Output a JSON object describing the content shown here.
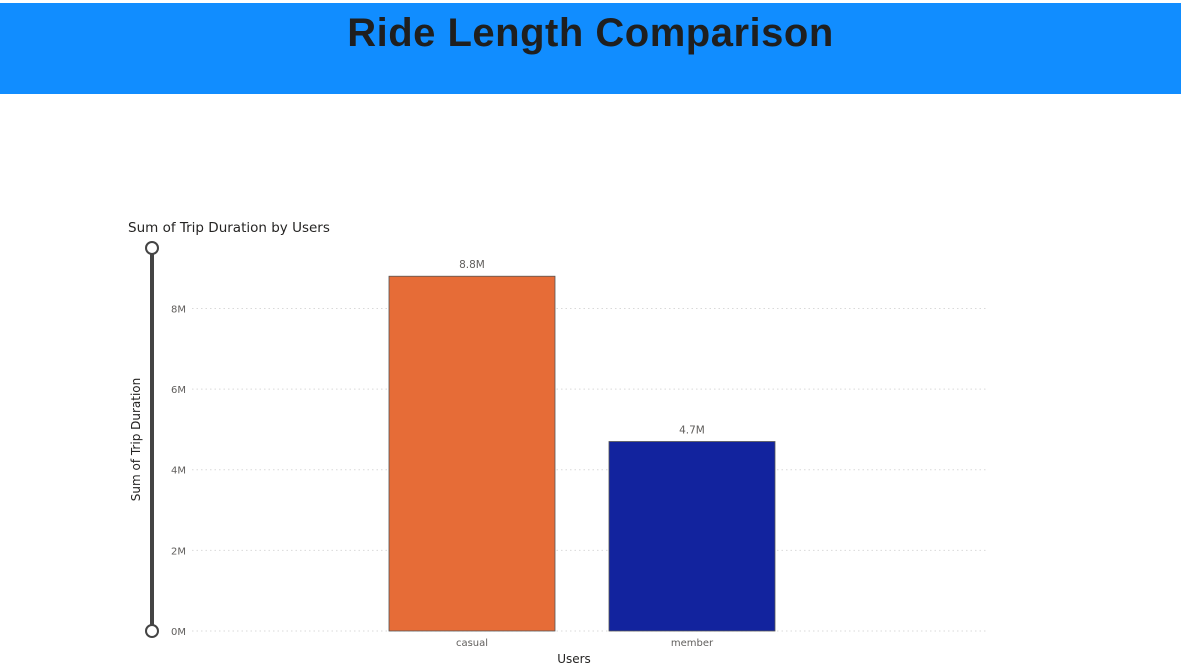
{
  "header": {
    "title": "Ride Length Comparison",
    "background": "#118dff"
  },
  "chart_data": {
    "type": "bar",
    "title": "Sum of Trip Duration by Users",
    "xlabel": "Users",
    "ylabel": "Sum of Trip Duration",
    "categories": [
      "casual",
      "member"
    ],
    "values": [
      8800000,
      4700000
    ],
    "data_labels": [
      "8.8M",
      "4.7M"
    ],
    "colors": [
      "#e66c37",
      "#12239e"
    ],
    "ylim": [
      0,
      9500000
    ],
    "yticks": [
      0,
      2000000,
      4000000,
      6000000,
      8000000
    ],
    "ytick_labels": [
      "0M",
      "2M",
      "4M",
      "6M",
      "8M"
    ],
    "grid": true,
    "legend": "none",
    "range_slider": true
  }
}
